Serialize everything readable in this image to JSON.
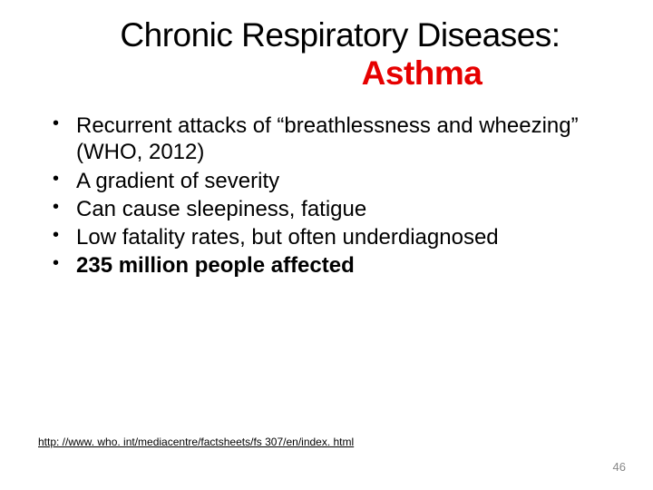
{
  "title": {
    "line1": "Chronic Respiratory Diseases:",
    "line2": "Asthma",
    "line1_color": "#000000",
    "line2_color": "#e60000",
    "fontsize": 37
  },
  "bullets": [
    {
      "text": "Recurrent attacks of “breathlessness and wheezing” (WHO, 2012)",
      "bold": false
    },
    {
      "text": "A gradient of severity",
      "bold": false
    },
    {
      "text": "Can cause sleepiness, fatigue",
      "bold": false
    },
    {
      "text": "Low fatality rates, but often underdiagnosed",
      "bold": false
    },
    {
      "text": "235 million people affected",
      "bold": true
    }
  ],
  "bullet_fontsize": 24,
  "bullet_color": "#000000",
  "footer": {
    "link_text": "http: //www. who. int/mediacentre/factsheets/fs 307/en/index. html",
    "fontsize": 12
  },
  "page_number": "46",
  "background_color": "#ffffff"
}
